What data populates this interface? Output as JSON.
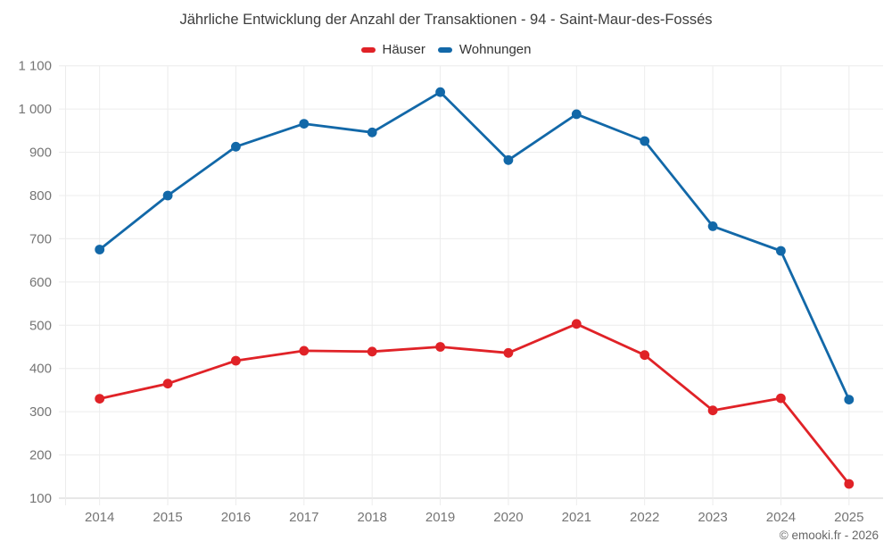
{
  "title": "Jährliche Entwicklung der Anzahl der Transaktionen - 94 - Saint-Maur-des-Fossés",
  "legend": [
    {
      "label": "Häuser",
      "color": "#e02227"
    },
    {
      "label": "Wohnungen",
      "color": "#1268a8"
    }
  ],
  "footer": "© emooki.fr - 2026",
  "colors": {
    "grid": "#ececec",
    "axis_line": "#cfcfcf",
    "tick_label": "#757575",
    "title_text": "#3d3d3d",
    "haeuser_red": "#e02227",
    "wohnungen_blue": "#1268a8"
  },
  "chart_data": {
    "type": "line",
    "title": "Jährliche Entwicklung der Anzahl der Transaktionen - 94 - Saint-Maur-des-Fossés",
    "categories": [
      "2014",
      "2015",
      "2016",
      "2017",
      "2018",
      "2019",
      "2020",
      "2021",
      "2022",
      "2023",
      "2024",
      "2025"
    ],
    "series": [
      {
        "name": "Häuser",
        "color": "#e02227",
        "values": [
          330,
          365,
          418,
          441,
          439,
          450,
          436,
          503,
          431,
          303,
          331,
          133
        ]
      },
      {
        "name": "Wohnungen",
        "color": "#1268a8",
        "values": [
          675,
          800,
          913,
          966,
          946,
          1039,
          882,
          988,
          926,
          729,
          672,
          328
        ]
      }
    ],
    "xlabel": "",
    "ylabel": "",
    "ylim": [
      100,
      1100
    ],
    "ytick_step": 100,
    "ytick_labels": [
      "100",
      "200",
      "300",
      "400",
      "500",
      "600",
      "700",
      "800",
      "900",
      "1 000",
      "1 100"
    ],
    "grid": true,
    "legend_position": "top"
  }
}
